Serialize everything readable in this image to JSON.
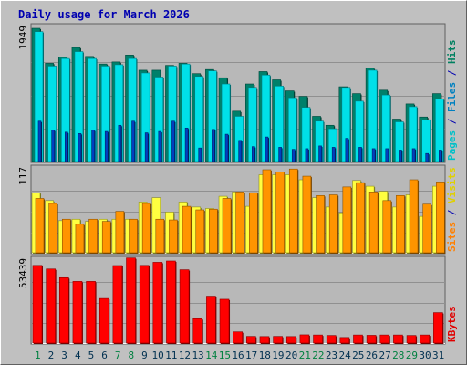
{
  "chart_data": {
    "type": "bar",
    "title": "Daily usage for March 2026",
    "title_color": "#0000b0",
    "background_color": "#c0c0c0",
    "panel_color": "#b8b8b8",
    "categories": [
      "1",
      "2",
      "3",
      "4",
      "5",
      "6",
      "7",
      "8",
      "9",
      "10",
      "11",
      "12",
      "13",
      "14",
      "15",
      "16",
      "17",
      "18",
      "19",
      "20",
      "21",
      "22",
      "23",
      "24",
      "25",
      "26",
      "27",
      "28",
      "29",
      "30",
      "31"
    ],
    "weekend_days": [
      "1",
      "7",
      "8",
      "14",
      "15",
      "21",
      "22",
      "28",
      "29"
    ],
    "weekend_color": "#008040",
    "weekday_color": "#003050",
    "panels": [
      {
        "id": "hits",
        "axis_max_label": "1949",
        "axis_max": 1949,
        "side_label": [
          {
            "text": "Pages",
            "color": "#00c0c8"
          },
          {
            "text": " / ",
            "color": "#0000b0"
          },
          {
            "text": "Files",
            "color": "#0080c0"
          },
          {
            "text": " / ",
            "color": "#0000b0"
          },
          {
            "text": "Hits",
            "color": "#008060"
          }
        ],
        "series": [
          {
            "name": "Hits",
            "color": "#00806a",
            "values": [
              1949,
              1440,
              1530,
              1670,
              1540,
              1430,
              1460,
              1560,
              1340,
              1340,
              1410,
              1440,
              1290,
              1350,
              1230,
              745,
              1140,
              1320,
              1200,
              1040,
              960,
              670,
              540,
              1100,
              1000,
              1370,
              1050,
              630,
              850,
              660,
              1000
            ]
          },
          {
            "name": "Files",
            "color": "#00e0e8",
            "values": [
              1900,
              1400,
              1510,
              1610,
              1510,
              1400,
              1420,
              1510,
              1300,
              1240,
              1400,
              1430,
              1250,
              1330,
              1140,
              670,
              1090,
              1270,
              1110,
              940,
              800,
              600,
              490,
              1090,
              890,
              1340,
              980,
              590,
              810,
              620,
              920
            ]
          },
          {
            "name": "Pages",
            "color": "#0040c0",
            "values": [
              600,
              470,
              440,
              420,
              470,
              450,
              540,
              600,
              430,
              450,
              600,
              500,
              210,
              480,
              410,
              320,
              230,
              370,
              220,
              190,
              200,
              240,
              220,
              350,
              220,
              200,
              200,
              180,
              200,
              130,
              180
            ]
          }
        ]
      },
      {
        "id": "visits",
        "axis_max_label": "117",
        "axis_max": 117,
        "side_label": [
          {
            "text": "Sites",
            "color": "#ff8000"
          },
          {
            "text": " / ",
            "color": "#0000b0"
          },
          {
            "text": "Visits",
            "color": "#e0d000"
          }
        ],
        "series": [
          {
            "name": "Visits",
            "color": "#ffff40",
            "values": [
              85,
              74,
              46,
              48,
              45,
              48,
              48,
              48,
              72,
              78,
              58,
              72,
              65,
              63,
              80,
              86,
              66,
              110,
              110,
              110,
              103,
              78,
              65,
              57,
              102,
              94,
              87,
              65,
              82,
              52,
              94
            ]
          },
          {
            "name": "Sites",
            "color": "#ff9400",
            "values": [
              77,
              70,
              48,
              41,
              48,
              45,
              59,
              48,
              70,
              48,
              47,
              66,
              61,
              62,
              77,
              86,
              85,
              117,
              114,
              118,
              108,
              81,
              82,
              93,
              99,
              86,
              74,
              81,
              103,
              69,
              100
            ]
          }
        ]
      },
      {
        "id": "kbytes",
        "axis_max_label": "53439",
        "axis_max": 53439,
        "side_label": [
          {
            "text": "KBytes",
            "color": "#e00000"
          }
        ],
        "series": [
          {
            "name": "KBytes",
            "color": "#ff0000",
            "values": [
              50600,
              48300,
              42700,
              40300,
              40300,
              29300,
              50500,
              55400,
              50600,
              52600,
              53439,
              47800,
              16300,
              30800,
              28800,
              7800,
              4900,
              4800,
              4900,
              4800,
              5900,
              5800,
              5500,
              4200,
              5800,
              5600,
              5800,
              5800,
              5500,
              5800,
              20200
            ]
          }
        ]
      }
    ],
    "grid": true
  }
}
